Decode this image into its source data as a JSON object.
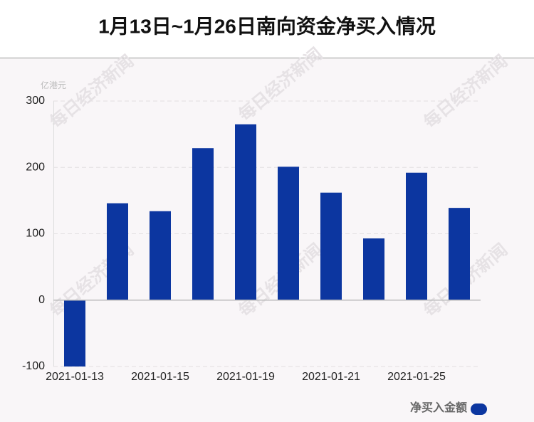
{
  "chart_data": {
    "type": "bar",
    "title": "1月13日~1月26日南向资金净买入情况",
    "y_unit": "亿港元",
    "watermark": "每日经济新闻",
    "categories": [
      "2021-01-13",
      null,
      "2021-01-15",
      null,
      "2021-01-19",
      null,
      "2021-01-21",
      null,
      "2021-01-25",
      null
    ],
    "series": [
      {
        "name": "净买入金额",
        "color": "#0c36a0",
        "values": [
          -100,
          146,
          134,
          229,
          265,
          201,
          162,
          93,
          192,
          139
        ]
      }
    ],
    "ylim": [
      -100,
      300
    ],
    "yticks": [
      -100,
      0,
      100,
      200,
      300
    ],
    "grid": true,
    "legend": "bottom-right"
  }
}
